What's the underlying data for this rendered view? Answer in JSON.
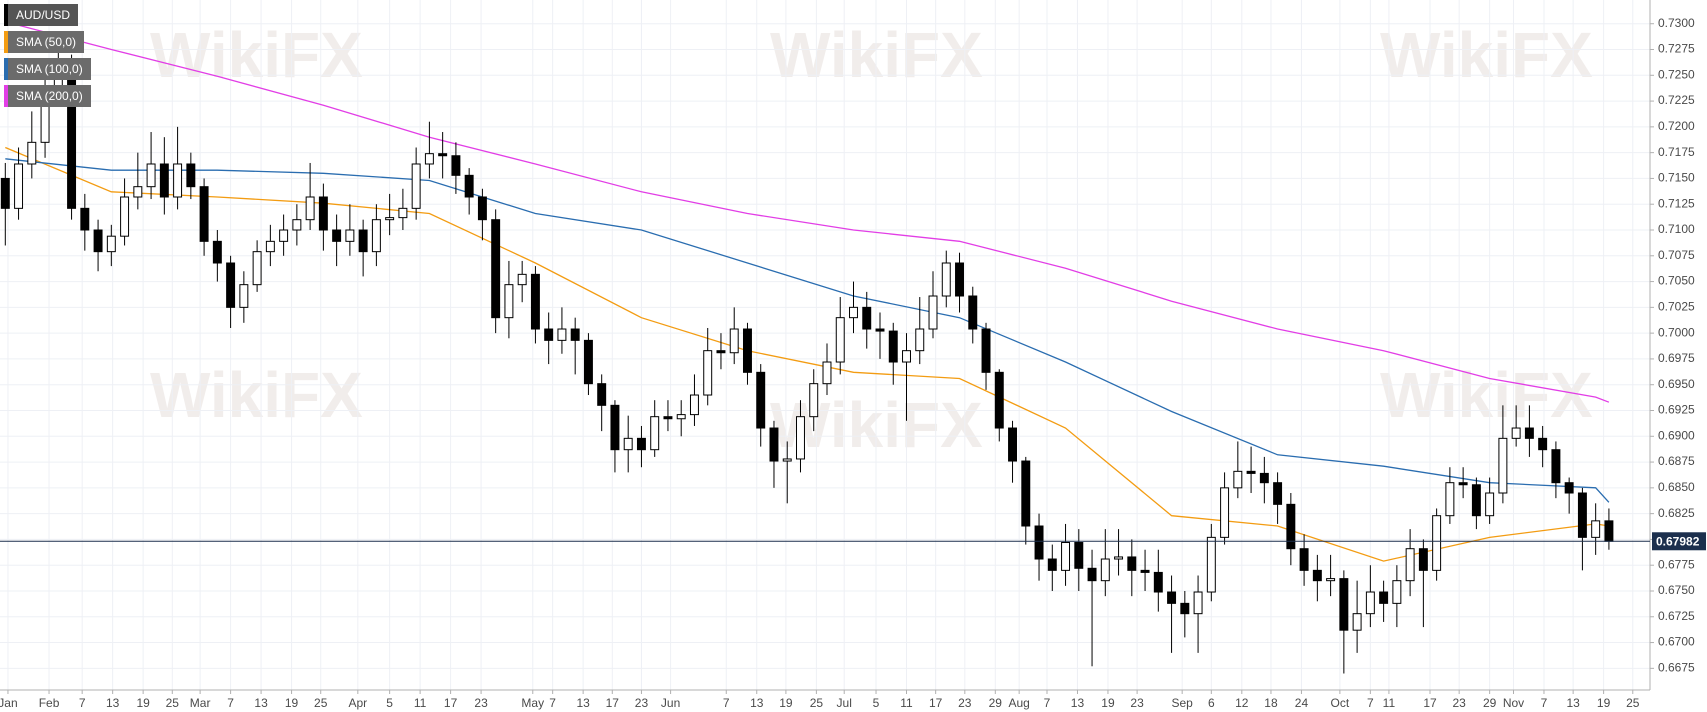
{
  "chart_data": {
    "type": "candlestick",
    "watermark": "WikiFX",
    "candles": {
      "name": "AUD/USD",
      "up_color": "#ffffff",
      "down_color": "#000000",
      "x": [
        0,
        1,
        2,
        3,
        4,
        5,
        6,
        7,
        8,
        9,
        10,
        11,
        12,
        13,
        14,
        15,
        16,
        17,
        18,
        19,
        20,
        21,
        22,
        23,
        24,
        25,
        26,
        27,
        28,
        29,
        30,
        31,
        32,
        33,
        34,
        35,
        36,
        37,
        38,
        39,
        40,
        41,
        42,
        43,
        44,
        45,
        46,
        47,
        48,
        49,
        50,
        51,
        52,
        53,
        54,
        55,
        56,
        57,
        58,
        59,
        60,
        61,
        62,
        63,
        64,
        65,
        66,
        67,
        68,
        69,
        70,
        71,
        72,
        73,
        74,
        75,
        76,
        77,
        78,
        79,
        80,
        81,
        82,
        83,
        84,
        85,
        86,
        87,
        88,
        89,
        90,
        91,
        92,
        93,
        94,
        95,
        96,
        97,
        98,
        99,
        100,
        101,
        102,
        103,
        104,
        105,
        106,
        107,
        108,
        109,
        110,
        111,
        112,
        113,
        114,
        115,
        116,
        117,
        118,
        119,
        120,
        121
      ],
      "open": [
        0.715,
        0.7121,
        0.7164,
        0.7185,
        0.7238,
        0.7259,
        0.7121,
        0.71,
        0.7079,
        0.7094,
        0.7132,
        0.7142,
        0.7164,
        0.7132,
        0.7164,
        0.7142,
        0.7089,
        0.7068,
        0.7025,
        0.7047,
        0.7079,
        0.7089,
        0.71,
        0.711,
        0.7132,
        0.71,
        0.7089,
        0.71,
        0.7079,
        0.711,
        0.7112,
        0.7121,
        0.7164,
        0.7174,
        0.7172,
        0.7153,
        0.7132,
        0.711,
        0.7015,
        0.7047,
        0.7057,
        0.7004,
        0.6993,
        0.7004,
        0.6993,
        0.6951,
        0.693,
        0.6887,
        0.6898,
        0.6887,
        0.6919,
        0.6917,
        0.6921,
        0.694,
        0.6983,
        0.6981,
        0.7004,
        0.6962,
        0.6908,
        0.6876,
        0.6878,
        0.6919,
        0.6951,
        0.6972,
        0.7015,
        0.7025,
        0.7004,
        0.7002,
        0.6972,
        0.6983,
        0.7004,
        0.7036,
        0.7068,
        0.7036,
        0.7004,
        0.6962,
        0.6908,
        0.6876,
        0.6813,
        0.6781,
        0.677,
        0.6797,
        0.6772,
        0.676,
        0.6781,
        0.6783,
        0.677,
        0.6768,
        0.6749,
        0.6738,
        0.6728,
        0.6749,
        0.6802,
        0.685,
        0.6866,
        0.6864,
        0.6855,
        0.6834,
        0.6791,
        0.677,
        0.676,
        0.6762,
        0.6712,
        0.6728,
        0.6749,
        0.6738,
        0.676,
        0.6791,
        0.677,
        0.6823,
        0.6855,
        0.6853,
        0.6823,
        0.6845,
        0.6898,
        0.6908,
        0.6898,
        0.6887,
        0.6855,
        0.6845,
        0.6802,
        0.6818
      ],
      "high": [
        0.7165,
        0.718,
        0.7215,
        0.726,
        0.7285,
        0.727,
        0.7135,
        0.711,
        0.7105,
        0.715,
        0.7175,
        0.7195,
        0.719,
        0.72,
        0.7175,
        0.715,
        0.71,
        0.7075,
        0.706,
        0.709,
        0.7105,
        0.7115,
        0.7125,
        0.7165,
        0.7145,
        0.7115,
        0.7125,
        0.711,
        0.7125,
        0.7135,
        0.714,
        0.718,
        0.7205,
        0.7195,
        0.7185,
        0.716,
        0.714,
        0.712,
        0.707,
        0.707,
        0.7065,
        0.702,
        0.7025,
        0.7015,
        0.7,
        0.696,
        0.6935,
        0.692,
        0.691,
        0.6935,
        0.6935,
        0.6935,
        0.696,
        0.7005,
        0.7,
        0.7025,
        0.701,
        0.697,
        0.6915,
        0.6895,
        0.6935,
        0.6965,
        0.699,
        0.7035,
        0.705,
        0.704,
        0.702,
        0.701,
        0.7,
        0.7035,
        0.706,
        0.708,
        0.7078,
        0.7045,
        0.701,
        0.6965,
        0.6915,
        0.688,
        0.6825,
        0.6795,
        0.6815,
        0.681,
        0.679,
        0.681,
        0.681,
        0.68,
        0.679,
        0.679,
        0.6765,
        0.675,
        0.6765,
        0.6815,
        0.6865,
        0.6895,
        0.689,
        0.688,
        0.6865,
        0.6845,
        0.6805,
        0.6785,
        0.6785,
        0.677,
        0.676,
        0.6775,
        0.676,
        0.6775,
        0.681,
        0.68,
        0.683,
        0.687,
        0.687,
        0.686,
        0.686,
        0.693,
        0.693,
        0.693,
        0.691,
        0.6895,
        0.686,
        0.685,
        0.6835,
        0.683
      ],
      "low": [
        0.7085,
        0.711,
        0.715,
        0.717,
        0.7225,
        0.711,
        0.708,
        0.706,
        0.7065,
        0.7085,
        0.712,
        0.713,
        0.7115,
        0.712,
        0.713,
        0.7075,
        0.705,
        0.7005,
        0.701,
        0.704,
        0.7065,
        0.7075,
        0.7085,
        0.71,
        0.708,
        0.7065,
        0.7075,
        0.7055,
        0.7065,
        0.7095,
        0.71,
        0.711,
        0.715,
        0.715,
        0.7135,
        0.7115,
        0.709,
        0.7,
        0.6995,
        0.703,
        0.699,
        0.697,
        0.698,
        0.696,
        0.694,
        0.6905,
        0.6865,
        0.6865,
        0.687,
        0.688,
        0.6905,
        0.69,
        0.691,
        0.693,
        0.6965,
        0.697,
        0.695,
        0.689,
        0.685,
        0.6835,
        0.6865,
        0.6905,
        0.694,
        0.696,
        0.7,
        0.6985,
        0.6975,
        0.695,
        0.6915,
        0.697,
        0.6995,
        0.7025,
        0.702,
        0.699,
        0.6945,
        0.6895,
        0.6855,
        0.6795,
        0.676,
        0.675,
        0.6755,
        0.675,
        0.6677,
        0.6745,
        0.6765,
        0.6745,
        0.675,
        0.673,
        0.669,
        0.6705,
        0.669,
        0.674,
        0.6795,
        0.684,
        0.6845,
        0.6835,
        0.6815,
        0.6775,
        0.6755,
        0.674,
        0.6745,
        0.667,
        0.669,
        0.6715,
        0.672,
        0.6715,
        0.6745,
        0.6715,
        0.676,
        0.6815,
        0.684,
        0.681,
        0.6815,
        0.6835,
        0.689,
        0.688,
        0.687,
        0.684,
        0.6825,
        0.677,
        0.6785,
        0.679
      ],
      "close": [
        0.7121,
        0.7164,
        0.7185,
        0.7238,
        0.7259,
        0.7121,
        0.71,
        0.7079,
        0.7094,
        0.7132,
        0.7142,
        0.7164,
        0.7132,
        0.7164,
        0.7142,
        0.7089,
        0.7068,
        0.7025,
        0.7047,
        0.7079,
        0.7089,
        0.71,
        0.711,
        0.7132,
        0.71,
        0.7089,
        0.71,
        0.7079,
        0.711,
        0.7112,
        0.7121,
        0.7164,
        0.7174,
        0.7172,
        0.7153,
        0.7132,
        0.711,
        0.7015,
        0.7047,
        0.7057,
        0.7004,
        0.6993,
        0.7004,
        0.6993,
        0.6951,
        0.693,
        0.6887,
        0.6898,
        0.6887,
        0.6919,
        0.6917,
        0.6921,
        0.694,
        0.6983,
        0.6981,
        0.7004,
        0.6962,
        0.6908,
        0.6876,
        0.6878,
        0.6919,
        0.6951,
        0.6972,
        0.7015,
        0.7025,
        0.7004,
        0.7002,
        0.6972,
        0.6983,
        0.7004,
        0.7036,
        0.7068,
        0.7036,
        0.7004,
        0.6962,
        0.6908,
        0.6876,
        0.6813,
        0.6781,
        0.677,
        0.6797,
        0.6772,
        0.676,
        0.6781,
        0.6783,
        0.677,
        0.6768,
        0.6749,
        0.6738,
        0.6728,
        0.6749,
        0.6802,
        0.685,
        0.6866,
        0.6864,
        0.6855,
        0.6834,
        0.6791,
        0.677,
        0.676,
        0.6762,
        0.6712,
        0.6728,
        0.6749,
        0.6738,
        0.676,
        0.6791,
        0.677,
        0.6823,
        0.6855,
        0.6853,
        0.6823,
        0.6845,
        0.6898,
        0.6908,
        0.6898,
        0.6887,
        0.6855,
        0.6845,
        0.6802,
        0.6818,
        0.67982
      ]
    },
    "series": [
      {
        "name": "SMA (50,0)",
        "color": "#f39c12",
        "x": [
          0,
          8,
          16,
          24,
          32,
          40,
          48,
          56,
          64,
          72,
          80,
          88,
          96,
          104,
          112,
          120,
          121
        ],
        "values": [
          0.718,
          0.7137,
          0.7132,
          0.7126,
          0.7116,
          0.7068,
          0.7015,
          0.6983,
          0.6962,
          0.6956,
          0.6908,
          0.6823,
          0.6813,
          0.6779,
          0.6802,
          0.6815,
          0.6813
        ]
      },
      {
        "name": "SMA (100,0)",
        "color": "#2a6db0",
        "x": [
          0,
          8,
          16,
          24,
          32,
          40,
          48,
          56,
          64,
          72,
          80,
          88,
          96,
          104,
          112,
          120,
          121
        ],
        "values": [
          0.7169,
          0.7158,
          0.7158,
          0.7155,
          0.7148,
          0.7116,
          0.71,
          0.7068,
          0.7036,
          0.7015,
          0.6972,
          0.6924,
          0.6882,
          0.6871,
          0.6855,
          0.685,
          0.6836
        ]
      },
      {
        "name": "SMA (200,0)",
        "color": "#e23ee6",
        "x": [
          0,
          8,
          16,
          24,
          32,
          40,
          48,
          56,
          64,
          72,
          80,
          88,
          96,
          104,
          112,
          120,
          121
        ],
        "values": [
          0.7302,
          0.7275,
          0.7249,
          0.7221,
          0.719,
          0.7164,
          0.7137,
          0.7116,
          0.71,
          0.7089,
          0.7063,
          0.7031,
          0.7004,
          0.6983,
          0.6956,
          0.6938,
          0.6933
        ]
      }
    ],
    "last_price": 0.67982,
    "last_price_color": "#1c2f4d",
    "grid": true,
    "xlim": [
      -0.4,
      124.1
    ],
    "xticks": [
      {
        "value": 0.2,
        "label": "Jan"
      },
      {
        "value": 3.3,
        "label": "Feb"
      },
      {
        "value": 5.8,
        "label": "7"
      },
      {
        "value": 8.1,
        "label": "13"
      },
      {
        "value": 10.4,
        "label": "19"
      },
      {
        "value": 12.6,
        "label": "25"
      },
      {
        "value": 14.7,
        "label": "Mar"
      },
      {
        "value": 17.0,
        "label": "7"
      },
      {
        "value": 19.3,
        "label": "13"
      },
      {
        "value": 21.6,
        "label": "19"
      },
      {
        "value": 23.8,
        "label": "25"
      },
      {
        "value": 26.6,
        "label": "Apr"
      },
      {
        "value": 29.0,
        "label": "5"
      },
      {
        "value": 31.3,
        "label": "11"
      },
      {
        "value": 33.6,
        "label": "17"
      },
      {
        "value": 35.9,
        "label": "23"
      },
      {
        "value": 39.8,
        "label": "May"
      },
      {
        "value": 41.3,
        "label": "7"
      },
      {
        "value": 43.6,
        "label": "13"
      },
      {
        "value": 45.8,
        "label": "17"
      },
      {
        "value": 48.0,
        "label": "23"
      },
      {
        "value": 50.2,
        "label": "Jun"
      },
      {
        "value": 54.4,
        "label": "7"
      },
      {
        "value": 56.7,
        "label": "13"
      },
      {
        "value": 58.9,
        "label": "19"
      },
      {
        "value": 61.2,
        "label": "25"
      },
      {
        "value": 63.3,
        "label": "Jul"
      },
      {
        "value": 65.7,
        "label": "5"
      },
      {
        "value": 68.0,
        "label": "11"
      },
      {
        "value": 70.2,
        "label": "17"
      },
      {
        "value": 72.4,
        "label": "23"
      },
      {
        "value": 74.7,
        "label": "29"
      },
      {
        "value": 76.5,
        "label": "Aug"
      },
      {
        "value": 78.6,
        "label": "7"
      },
      {
        "value": 80.9,
        "label": "13"
      },
      {
        "value": 83.2,
        "label": "19"
      },
      {
        "value": 85.4,
        "label": "23"
      },
      {
        "value": 88.8,
        "label": "Sep"
      },
      {
        "value": 91.0,
        "label": "6"
      },
      {
        "value": 93.3,
        "label": "12"
      },
      {
        "value": 95.5,
        "label": "18"
      },
      {
        "value": 97.8,
        "label": "24"
      },
      {
        "value": 100.7,
        "label": "Oct"
      },
      {
        "value": 103.0,
        "label": "7"
      },
      {
        "value": 104.4,
        "label": "11"
      },
      {
        "value": 107.5,
        "label": "17"
      },
      {
        "value": 109.7,
        "label": "23"
      },
      {
        "value": 112.0,
        "label": "29"
      },
      {
        "value": 113.8,
        "label": "Nov"
      },
      {
        "value": 116.1,
        "label": "7"
      },
      {
        "value": 118.3,
        "label": "13"
      },
      {
        "value": 120.6,
        "label": "19"
      },
      {
        "value": 122.8,
        "label": "25"
      }
    ],
    "ylim": [
      0.6654,
      0.7323
    ],
    "yticks": [
      0.6675,
      {
        "value": 0.67,
        "label": "0.6700"
      },
      0.6725,
      {
        "value": 0.675,
        "label": "0.6750"
      },
      0.6775,
      {
        "value": 0.68,
        "label": "0.6800"
      },
      0.6825,
      {
        "value": 0.685,
        "label": "0.6850"
      },
      0.6875,
      {
        "value": 0.69,
        "label": "0.6900"
      },
      0.6925,
      {
        "value": 0.695,
        "label": "0.6950"
      },
      0.6975,
      {
        "value": 0.7,
        "label": "0.7000"
      },
      0.7025,
      {
        "value": 0.705,
        "label": "0.7050"
      },
      0.7075,
      {
        "value": 0.71,
        "label": "0.7100"
      },
      0.7125,
      {
        "value": 0.715,
        "label": "0.7150"
      },
      0.7175,
      {
        "value": 0.72,
        "label": "0.7200"
      },
      0.7225,
      {
        "value": 0.725,
        "label": "0.7250"
      },
      0.7275,
      {
        "value": 0.73,
        "label": "0.7300"
      }
    ]
  }
}
